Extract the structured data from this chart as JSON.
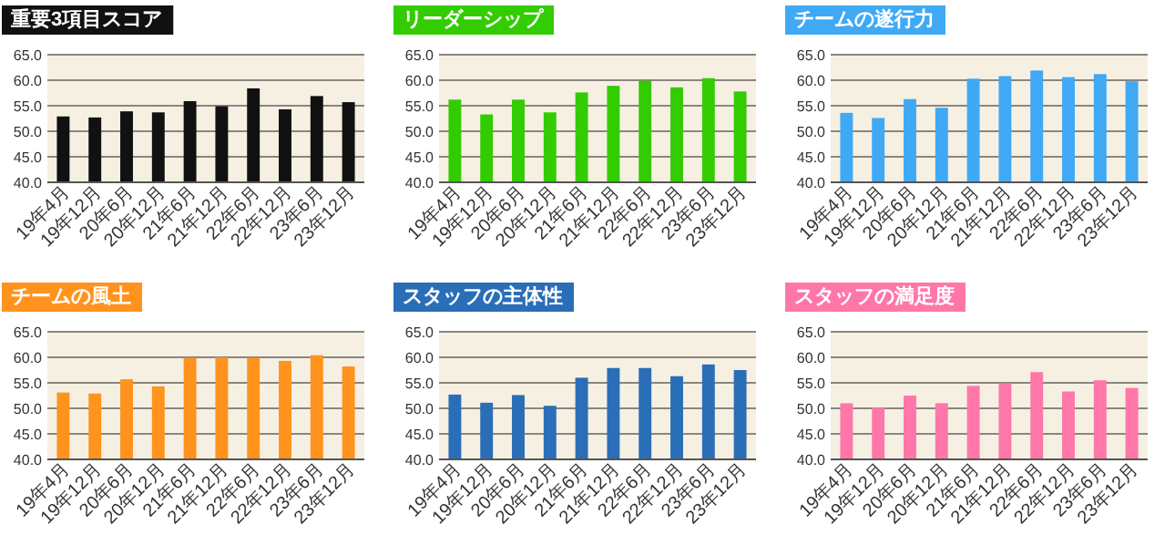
{
  "chart_data": [
    {
      "type": "bar",
      "title": "重要3項目スコア",
      "categories": [
        "19年4月",
        "19年12月",
        "20年6月",
        "20年12月",
        "21年6月",
        "21年12月",
        "22年6月",
        "22年12月",
        "23年6月",
        "23年12月"
      ],
      "values": [
        52.9,
        52.7,
        53.9,
        53.7,
        55.9,
        54.9,
        58.4,
        54.3,
        56.9,
        55.7
      ],
      "color": "#111111",
      "ylim": [
        40,
        65
      ],
      "yticks": [
        {
          "value": 40,
          "label": "40.0"
        },
        {
          "value": 45,
          "label": "45.0"
        },
        {
          "value": 50,
          "label": "50.0"
        },
        {
          "value": 55,
          "label": "55.0"
        },
        {
          "value": 60,
          "label": "60.0"
        },
        {
          "value": 65,
          "label": "65.0"
        }
      ],
      "grid": "y"
    },
    {
      "type": "bar",
      "title": "リーダーシップ",
      "categories": [
        "19年4月",
        "19年12月",
        "20年6月",
        "20年12月",
        "21年6月",
        "21年12月",
        "22年6月",
        "22年12月",
        "23年6月",
        "23年12月"
      ],
      "values": [
        56.2,
        53.3,
        56.2,
        53.7,
        57.6,
        58.9,
        59.9,
        58.6,
        60.4,
        57.8
      ],
      "color": "#33cc00",
      "ylim": [
        40,
        65
      ],
      "yticks": [
        {
          "value": 40,
          "label": "40.0"
        },
        {
          "value": 45,
          "label": "45.0"
        },
        {
          "value": 50,
          "label": "50.0"
        },
        {
          "value": 55,
          "label": "55.0"
        },
        {
          "value": 60,
          "label": "60.0"
        },
        {
          "value": 65,
          "label": "65.0"
        }
      ],
      "grid": "y"
    },
    {
      "type": "bar",
      "title": "チームの遂行力",
      "categories": [
        "19年4月",
        "19年12月",
        "20年6月",
        "20年12月",
        "21年6月",
        "21年12月",
        "22年6月",
        "22年12月",
        "23年6月",
        "23年12月"
      ],
      "values": [
        53.6,
        52.6,
        56.3,
        54.6,
        60.3,
        60.8,
        61.9,
        60.6,
        61.2,
        59.8
      ],
      "color": "#3fa9f5",
      "ylim": [
        40,
        65
      ],
      "yticks": [
        {
          "value": 40,
          "label": "40.0"
        },
        {
          "value": 45,
          "label": "45.0"
        },
        {
          "value": 50,
          "label": "50.0"
        },
        {
          "value": 55,
          "label": "55.0"
        },
        {
          "value": 60,
          "label": "60.0"
        },
        {
          "value": 65,
          "label": "65.0"
        }
      ],
      "grid": "y"
    },
    {
      "type": "bar",
      "title": "チームの風土",
      "categories": [
        "19年4月",
        "19年12月",
        "20年6月",
        "20年12月",
        "21年6月",
        "21年12月",
        "22年6月",
        "22年12月",
        "23年6月",
        "23年12月"
      ],
      "values": [
        53.1,
        52.9,
        55.7,
        54.3,
        59.9,
        60.0,
        59.9,
        59.3,
        60.4,
        58.2
      ],
      "color": "#ff931e",
      "ylim": [
        40,
        65
      ],
      "yticks": [
        {
          "value": 40,
          "label": "40.0"
        },
        {
          "value": 45,
          "label": "45.0"
        },
        {
          "value": 50,
          "label": "50.0"
        },
        {
          "value": 55,
          "label": "55.0"
        },
        {
          "value": 60,
          "label": "60.0"
        },
        {
          "value": 65,
          "label": "65.0"
        }
      ],
      "grid": "y"
    },
    {
      "type": "bar",
      "title": "スタッフの主体性",
      "categories": [
        "19年4月",
        "19年12月",
        "20年6月",
        "20年12月",
        "21年6月",
        "21年12月",
        "22年6月",
        "22年12月",
        "23年6月",
        "23年12月"
      ],
      "values": [
        52.7,
        51.1,
        52.6,
        50.5,
        56.0,
        57.9,
        57.9,
        56.3,
        58.6,
        57.5
      ],
      "color": "#2a6eb8",
      "ylim": [
        40,
        65
      ],
      "yticks": [
        {
          "value": 40,
          "label": "40.0"
        },
        {
          "value": 45,
          "label": "45.0"
        },
        {
          "value": 50,
          "label": "50.0"
        },
        {
          "value": 55,
          "label": "55.0"
        },
        {
          "value": 60,
          "label": "60.0"
        },
        {
          "value": 65,
          "label": "65.0"
        }
      ],
      "grid": "y"
    },
    {
      "type": "bar",
      "title": "スタッフの満足度",
      "categories": [
        "19年4月",
        "19年12月",
        "20年6月",
        "20年12月",
        "21年6月",
        "21年12月",
        "22年6月",
        "22年12月",
        "23年6月",
        "23年12月"
      ],
      "values": [
        51.0,
        50.1,
        52.5,
        51.0,
        54.4,
        54.9,
        57.1,
        53.3,
        55.5,
        54.0
      ],
      "color": "#ff77a9",
      "ylim": [
        40,
        65
      ],
      "yticks": [
        {
          "value": 40,
          "label": "40.0"
        },
        {
          "value": 45,
          "label": "45.0"
        },
        {
          "value": 50,
          "label": "50.0"
        },
        {
          "value": 55,
          "label": "55.0"
        },
        {
          "value": 60,
          "label": "60.0"
        },
        {
          "value": 65,
          "label": "65.0"
        }
      ],
      "grid": "y"
    }
  ]
}
